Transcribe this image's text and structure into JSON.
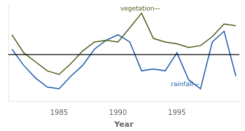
{
  "chart_data": {
    "type": "line",
    "x_label": "Year",
    "x": [
      1981,
      1982,
      1983,
      1984,
      1985,
      1986,
      1987,
      1988,
      1989,
      1990,
      1991,
      1992,
      1993,
      1994,
      1995,
      1996,
      1997,
      1998,
      1999,
      2000
    ],
    "series": [
      {
        "color": "#4a5c1a",
        "values": [
          0.55,
          0.05,
          -0.2,
          -0.45,
          -0.55,
          -0.25,
          0.1,
          0.35,
          0.4,
          0.35,
          0.75,
          1.15,
          0.45,
          0.35,
          0.3,
          0.2,
          0.25,
          0.5,
          0.85,
          0.8
        ]
      },
      {
        "color": "#1a5aaa",
        "values": [
          0.15,
          -0.3,
          -0.65,
          -0.9,
          -0.95,
          -0.6,
          -0.3,
          0.15,
          0.4,
          0.55,
          0.35,
          -0.45,
          -0.4,
          -0.45,
          0.05,
          -0.7,
          -0.95,
          0.35,
          0.65,
          -0.6
        ]
      }
    ],
    "annotations": [
      {
        "text": "vegetation—",
        "x": 1990.2,
        "y": 1.18,
        "color": "#4a5c1a"
      },
      {
        "text": "rainfall—",
        "x": 1994.5,
        "y": -0.75,
        "color": "#1a5aaa"
      },
      {
        "type": "hline",
        "y": 0,
        "color": "#000000"
      }
    ],
    "xlim": [
      1980.7,
      2000.3
    ],
    "xticks": [
      1985,
      1990,
      1995
    ],
    "ylim": [
      -1.3,
      1.4
    ],
    "tick_labels": "x",
    "grid": false
  }
}
